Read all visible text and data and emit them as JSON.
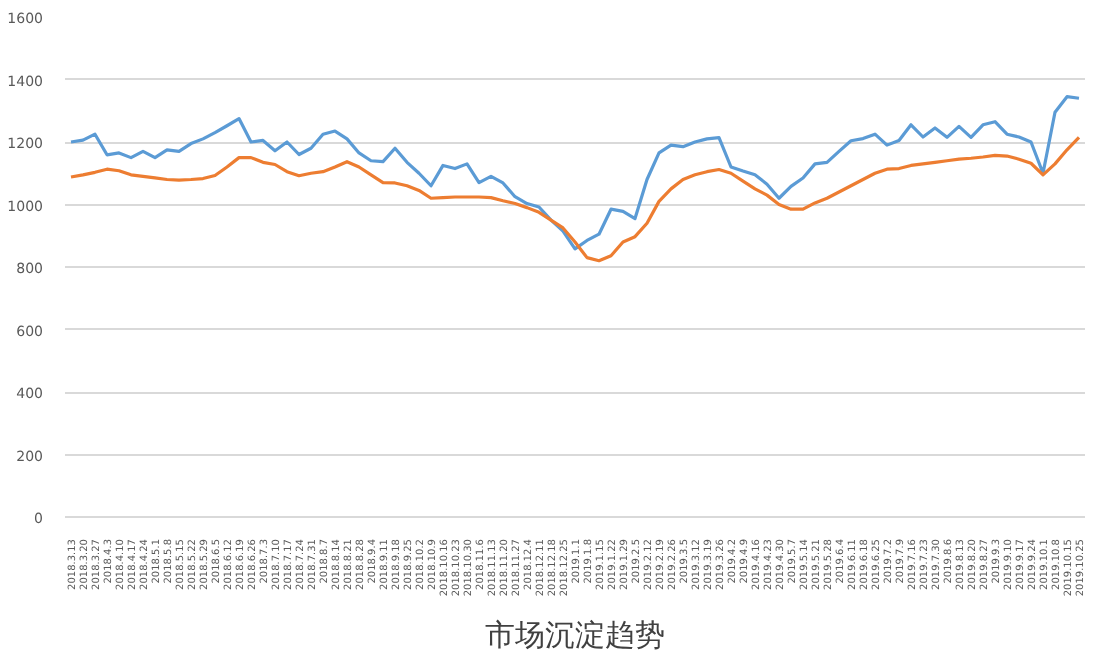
{
  "chart_data": {
    "type": "line",
    "title": "市场沉淀趋势",
    "categories": [
      "2018.3.13",
      "2018.3.20",
      "2018.3.27",
      "2018.4.3",
      "2018.4.10",
      "2018.4.17",
      "2018.4.24",
      "2018.5.1",
      "2018.5.8",
      "2018.5.15",
      "2018.5.22",
      "2018.5.29",
      "2018.6.5",
      "2018.6.12",
      "2018.6.19",
      "2018.6.26",
      "2018.7.3",
      "2018.7.10",
      "2018.7.17",
      "2018.7.24",
      "2018.7.31",
      "2018.8.7",
      "2018.8.14",
      "2018.8.21",
      "2018.8.28",
      "2018.9.4",
      "2018.9.11",
      "2018.9.18",
      "2018.9.25",
      "2018.10.2",
      "2018.10.9",
      "2018.10.16",
      "2018.10.23",
      "2018.10.30",
      "2018.11.6",
      "2018.11.13",
      "2018.11.20",
      "2018.11.27",
      "2018.12.4",
      "2018.12.11",
      "2018.12.18",
      "2018.12.25",
      "2019.1.1",
      "2019.1.8",
      "2019.1.15",
      "2019.1.22",
      "2019.1.29",
      "2019.2.5",
      "2019.2.12",
      "2019.2.19",
      "2019.2.26",
      "2019.3.5",
      "2019.3.12",
      "2019.3.19",
      "2019.3.26",
      "2019.4.2",
      "2019.4.9",
      "2019.4.16",
      "2019.4.23",
      "2019.4.30",
      "2019.5.7",
      "2019.5.14",
      "2019.5.21",
      "2019.5.28",
      "2019.6.4",
      "2019.6.11",
      "2019.6.18",
      "2019.6.25",
      "2019.7.2",
      "2019.7.9",
      "2019.7.16",
      "2019.7.23",
      "2019.7.30",
      "2019.8.6",
      "2019.8.13",
      "2019.8.20",
      "2019.8.27",
      "2019.9.3",
      "2019.9.10",
      "2019.9.17",
      "2019.9.24",
      "2019.10.1",
      "2019.10.8",
      "2019.10.15",
      "2019.10.25"
    ],
    "series": [
      {
        "color": "#5b9bd5",
        "values": [
          1200,
          1206,
          1225,
          1159,
          1165,
          1150,
          1170,
          1150,
          1175,
          1170,
          1195,
          1210,
          1230,
          1252,
          1275,
          1200,
          1205,
          1172,
          1200,
          1160,
          1180,
          1225,
          1235,
          1210,
          1165,
          1140,
          1137,
          1180,
          1135,
          1100,
          1060,
          1125,
          1115,
          1130,
          1070,
          1090,
          1069,
          1025,
          1003,
          992,
          950,
          915,
          858,
          885,
          905,
          985,
          978,
          955,
          1080,
          1165,
          1190,
          1185,
          1200,
          1210,
          1214,
          1120,
          1107,
          1095,
          1065,
          1020,
          1058,
          1085,
          1130,
          1135,
          1170,
          1204,
          1211,
          1225,
          1190,
          1205,
          1255,
          1216,
          1245,
          1215,
          1250,
          1215,
          1255,
          1265,
          1225,
          1216,
          1200,
          1100,
          1295,
          1345,
          1340
        ]
      },
      {
        "color": "#ed7d31",
        "values": [
          1088,
          1095,
          1103,
          1113,
          1108,
          1095,
          1090,
          1085,
          1080,
          1078,
          1080,
          1083,
          1093,
          1120,
          1150,
          1150,
          1135,
          1128,
          1105,
          1092,
          1100,
          1105,
          1120,
          1137,
          1120,
          1095,
          1070,
          1069,
          1060,
          1045,
          1020,
          1022,
          1024,
          1024,
          1024,
          1022,
          1012,
          1003,
          990,
          975,
          950,
          925,
          880,
          830,
          820,
          836,
          880,
          897,
          940,
          1010,
          1050,
          1080,
          1095,
          1105,
          1112,
          1100,
          1075,
          1050,
          1030,
          1000,
          985,
          985,
          1005,
          1020,
          1040,
          1060,
          1080,
          1100,
          1113,
          1115,
          1125,
          1130,
          1135,
          1140,
          1145,
          1148,
          1152,
          1157,
          1155,
          1145,
          1132,
          1095,
          1130,
          1175,
          1215
        ]
      }
    ],
    "ylim": [
      0,
      1600
    ],
    "yticks": [
      0,
      200,
      400,
      600,
      800,
      1000,
      1200,
      1400,
      1600
    ],
    "grid": "y",
    "line_style": "solid"
  }
}
